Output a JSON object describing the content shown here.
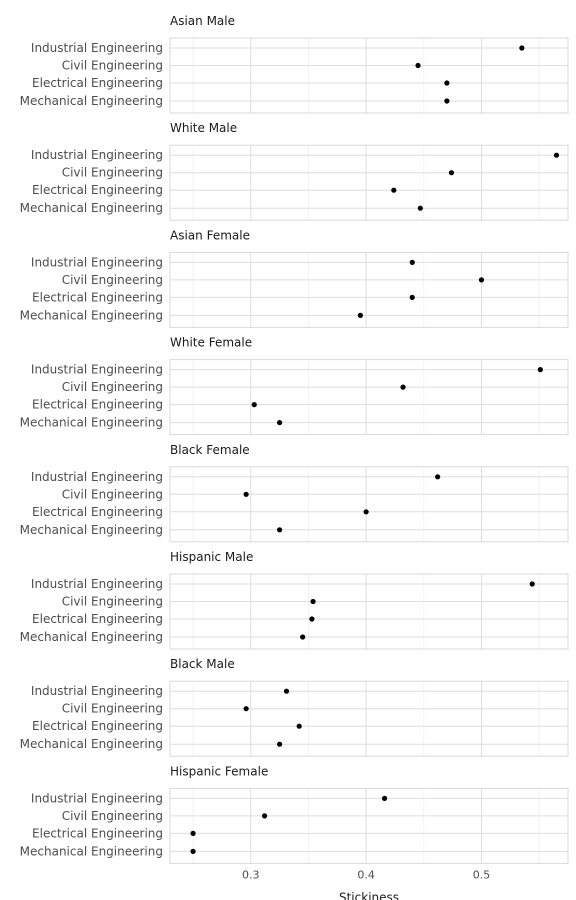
{
  "chart_data": {
    "type": "scatter",
    "xlabel": "Stickiness",
    "xlim": [
      0.23,
      0.575
    ],
    "x_ticks": [
      0.3,
      0.4,
      0.5
    ],
    "x_tick_labels": [
      "0.3",
      "0.4",
      "0.5"
    ],
    "grid": true,
    "categories": [
      "Industrial Engineering",
      "Civil Engineering",
      "Electrical Engineering",
      "Mechanical Engineering"
    ],
    "facets": [
      {
        "title": "Asian Male",
        "values": [
          0.535,
          0.445,
          0.47,
          0.47
        ]
      },
      {
        "title": "White Male",
        "values": [
          0.565,
          0.474,
          0.424,
          0.447
        ]
      },
      {
        "title": "Asian Female",
        "values": [
          0.44,
          0.5,
          0.44,
          0.395
        ]
      },
      {
        "title": "White Female",
        "values": [
          0.551,
          0.432,
          0.303,
          0.325
        ]
      },
      {
        "title": "Black Female",
        "values": [
          0.462,
          0.296,
          0.4,
          0.325
        ]
      },
      {
        "title": "Hispanic Male",
        "values": [
          0.544,
          0.354,
          0.353,
          0.345
        ]
      },
      {
        "title": "Black Male",
        "values": [
          0.331,
          0.296,
          0.342,
          0.325
        ]
      },
      {
        "title": "Hispanic Female",
        "values": [
          0.416,
          0.312,
          0.25,
          0.25
        ]
      }
    ]
  }
}
